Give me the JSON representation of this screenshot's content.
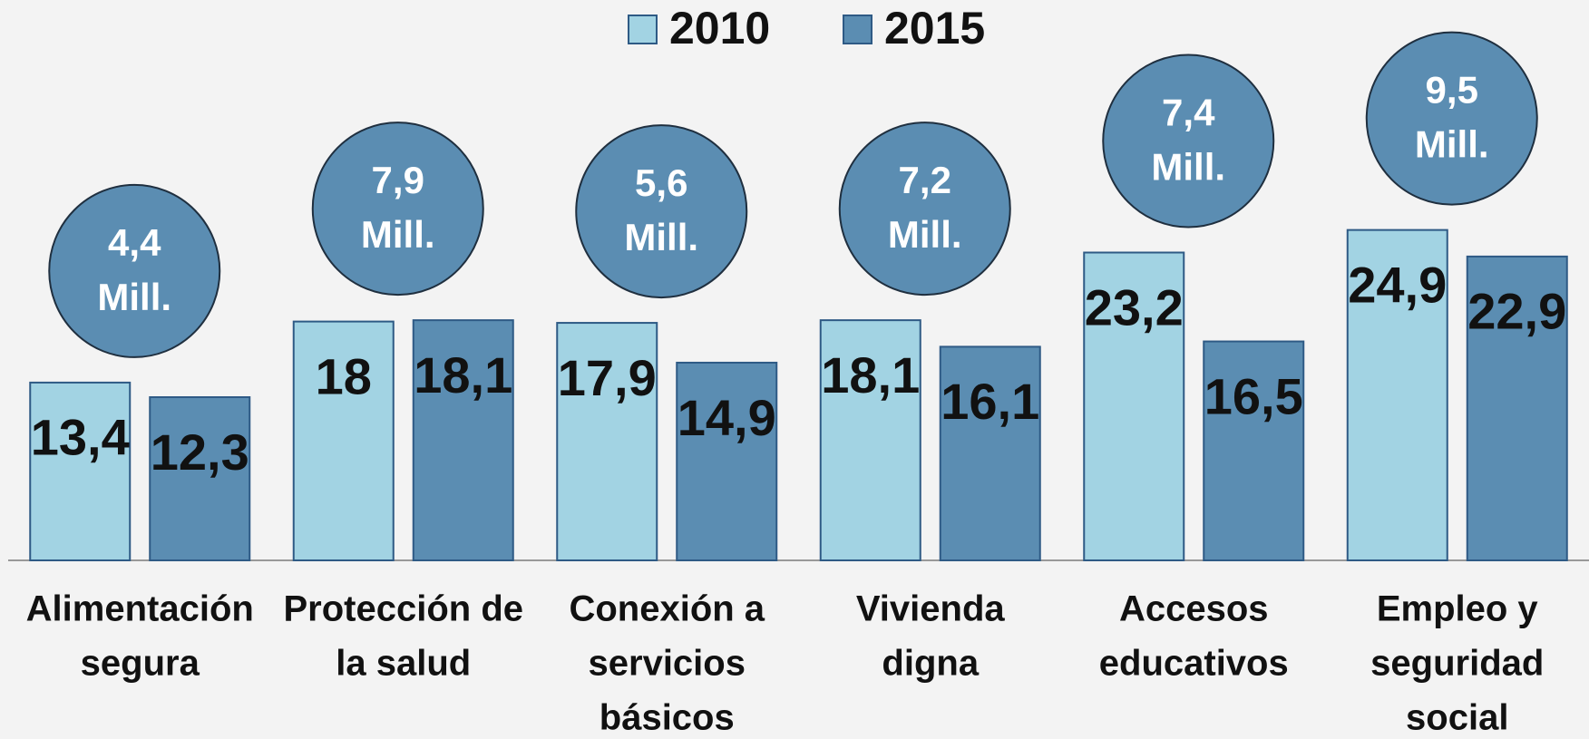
{
  "chart_data": {
    "type": "bar",
    "categories": [
      [
        "Alimentación",
        "segura"
      ],
      [
        "Protección de",
        "la salud"
      ],
      [
        "Conexión a",
        "servicios",
        "básicos"
      ],
      [
        "Vivienda",
        "digna"
      ],
      [
        "Accesos",
        "educativos"
      ],
      [
        "Empleo y",
        "seguridad",
        "social"
      ]
    ],
    "series": [
      {
        "name": "2010",
        "color": "#a2d3e3",
        "values": [
          13.4,
          18,
          17.9,
          18.1,
          23.2,
          24.9
        ],
        "value_labels": [
          "13,4",
          "18",
          "17,9",
          "18,1",
          "23,2",
          "24,9"
        ]
      },
      {
        "name": "2015",
        "color": "#5b8db2",
        "values": [
          12.3,
          18.1,
          14.9,
          16.1,
          16.5,
          22.9
        ],
        "value_labels": [
          "12,3",
          "18,1",
          "14,9",
          "16,1",
          "16,5",
          "22,9"
        ]
      }
    ],
    "annotations": [
      [
        "4,4",
        "Mill."
      ],
      [
        "7,9",
        "Mill."
      ],
      [
        "5,6",
        "Mill."
      ],
      [
        "7,2",
        "Mill."
      ],
      [
        "7,4",
        "Mill."
      ],
      [
        "9,5",
        "Mill."
      ]
    ],
    "ylim": [
      0,
      30
    ],
    "legend": "top"
  }
}
